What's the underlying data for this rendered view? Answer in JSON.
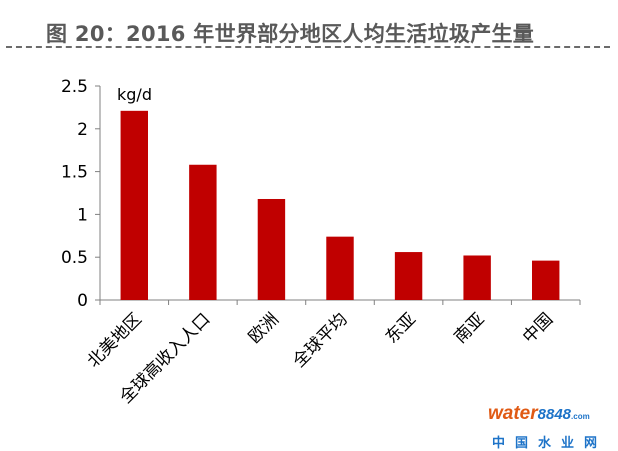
{
  "title": "图 20：2016 年世界部分地区人均生活垃圾产生量",
  "chart_data": {
    "type": "bar",
    "unit": "kg/d",
    "categories": [
      "北美地区",
      "全球高收入人口",
      "欧洲",
      "全球平均",
      "东亚",
      "南亚",
      "中国"
    ],
    "values": [
      2.21,
      1.58,
      1.18,
      0.74,
      0.56,
      0.52,
      0.46
    ],
    "ylim": [
      0,
      2.5
    ],
    "yticks": [
      "0",
      "0.5",
      "1",
      "1.5",
      "2",
      "2.5"
    ],
    "bar_color": "#c00000",
    "grid": false,
    "legend": "none"
  },
  "watermark": {
    "brand": "water",
    "brand_num": "8848",
    "brand_tld": ".com",
    "subtitle": "中国水业网"
  }
}
